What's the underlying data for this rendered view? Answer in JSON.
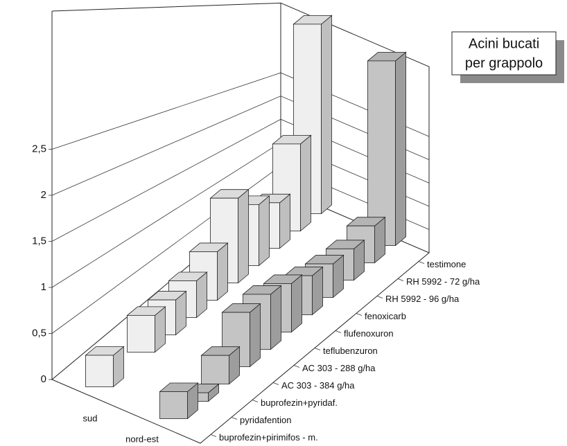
{
  "chart_data": {
    "type": "bar3d",
    "title": [
      "Acini bucati",
      "per grappolo"
    ],
    "categories": [
      "buprofezin+pirimifos - m.",
      "pyridafention",
      "buprofezin+pyridaf.",
      "AC 303 - 384 g/ha",
      "AC 303 - 288 g/ha",
      "teflubenzuron",
      "flufenoxuron",
      "fenoxicarb",
      "RH 5992 - 96 g/ha",
      "RH 5992 - 72 g/ha",
      "testimone"
    ],
    "series": [
      {
        "name": "sud",
        "color": "#efefef",
        "values": [
          0.35,
          null,
          0.45,
          0.45,
          0.5,
          0.7,
          1.3,
          1.0,
          0.8,
          1.65,
          3.9
        ]
      },
      {
        "name": "nord-est",
        "color": "#c4c4c4",
        "values": [
          0.3,
          0.1,
          0.35,
          0.7,
          0.75,
          0.7,
          0.6,
          0.55,
          0.55,
          0.7,
          3.8
        ]
      }
    ],
    "ylim": [
      0,
      4
    ],
    "yticks": [
      0,
      {
        "value": 0.5,
        "label": "0,5"
      },
      1,
      {
        "value": 1.5,
        "label": "1,5"
      },
      2,
      {
        "value": 2.5,
        "label": "2,5"
      }
    ],
    "grid": true
  }
}
